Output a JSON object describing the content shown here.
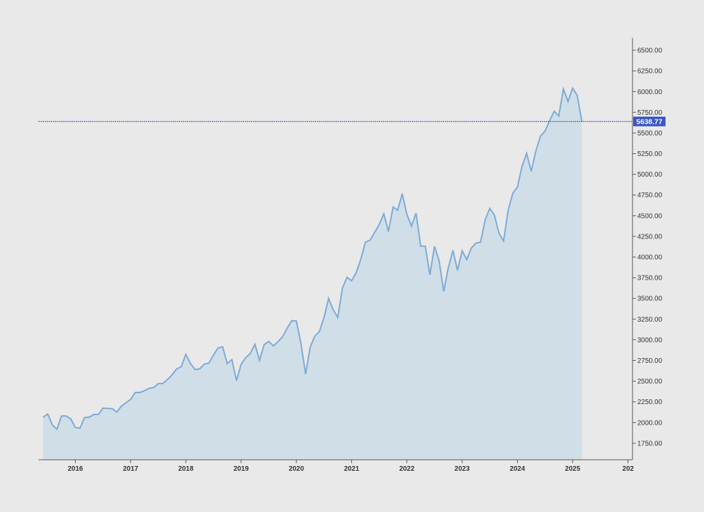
{
  "colors": {
    "background": "#e9e9e9",
    "line": "#7aaad8",
    "area_fill": "#d0dee7",
    "current_line": "#2b3fc9",
    "current_badge": "#3a56c8",
    "axis": "#555555"
  },
  "chart_data": {
    "type": "area",
    "title": "",
    "xlabel": "",
    "ylabel": "",
    "x_ticks": [
      "2016",
      "2017",
      "2018",
      "2019",
      "2020",
      "2021",
      "2022",
      "2023",
      "2024",
      "2025",
      "202"
    ],
    "y_ticks": [
      "1750.00",
      "2000.00",
      "2250.00",
      "2500.00",
      "2750.00",
      "3000.00",
      "3250.00",
      "3500.00",
      "3750.00",
      "4000.00",
      "4250.00",
      "4500.00",
      "4750.00",
      "5000.00",
      "5250.00",
      "5500.00",
      "5750.00",
      "6000.00",
      "6250.00",
      "6500.00"
    ],
    "ylim": [
      1550,
      6650
    ],
    "xlim": [
      "2015-05",
      "2026-02"
    ],
    "y_axis_position": "right",
    "grid": false,
    "current_value_label": "5638.77",
    "current_value": 5638.77,
    "series": [
      {
        "x": [
          "2015-06",
          "2015-07",
          "2015-08",
          "2015-09",
          "2015-10",
          "2015-11",
          "2015-12",
          "2016-01",
          "2016-02",
          "2016-03",
          "2016-04",
          "2016-05",
          "2016-06",
          "2016-07",
          "2016-08",
          "2016-09",
          "2016-10",
          "2016-11",
          "2016-12",
          "2017-01",
          "2017-02",
          "2017-03",
          "2017-04",
          "2017-05",
          "2017-06",
          "2017-07",
          "2017-08",
          "2017-09",
          "2017-10",
          "2017-11",
          "2017-12",
          "2018-01",
          "2018-02",
          "2018-03",
          "2018-04",
          "2018-05",
          "2018-06",
          "2018-07",
          "2018-08",
          "2018-09",
          "2018-10",
          "2018-11",
          "2018-12",
          "2019-01",
          "2019-02",
          "2019-03",
          "2019-04",
          "2019-05",
          "2019-06",
          "2019-07",
          "2019-08",
          "2019-09",
          "2019-10",
          "2019-11",
          "2019-12",
          "2020-01",
          "2020-02",
          "2020-03",
          "2020-04",
          "2020-05",
          "2020-06",
          "2020-07",
          "2020-08",
          "2020-09",
          "2020-10",
          "2020-11",
          "2020-12",
          "2021-01",
          "2021-02",
          "2021-03",
          "2021-04",
          "2021-05",
          "2021-06",
          "2021-07",
          "2021-08",
          "2021-09",
          "2021-10",
          "2021-11",
          "2021-12",
          "2022-01",
          "2022-02",
          "2022-03",
          "2022-04",
          "2022-05",
          "2022-06",
          "2022-07",
          "2022-08",
          "2022-09",
          "2022-10",
          "2022-11",
          "2022-12",
          "2023-01",
          "2023-02",
          "2023-03",
          "2023-04",
          "2023-05",
          "2023-06",
          "2023-07",
          "2023-08",
          "2023-09",
          "2023-10",
          "2023-11",
          "2023-12",
          "2024-01",
          "2024-02",
          "2024-03",
          "2024-04",
          "2024-05",
          "2024-06",
          "2024-07",
          "2024-08",
          "2024-09",
          "2024-10",
          "2024-11",
          "2024-12",
          "2025-01",
          "2025-02",
          "2025-03"
        ],
        "values": [
          2063,
          2104,
          1972,
          1920,
          2079,
          2080,
          2044,
          1940,
          1932,
          2060,
          2065,
          2097,
          2099,
          2174,
          2171,
          2168,
          2126,
          2199,
          2239,
          2279,
          2364,
          2363,
          2384,
          2412,
          2423,
          2470,
          2472,
          2519,
          2575,
          2648,
          2674,
          2824,
          2714,
          2641,
          2648,
          2705,
          2718,
          2816,
          2902,
          2914,
          2712,
          2760,
          2507,
          2704,
          2784,
          2834,
          2946,
          2752,
          2942,
          2980,
          2926,
          2977,
          3038,
          3141,
          3231,
          3226,
          2954,
          2585,
          2912,
          3044,
          3100,
          3271,
          3500,
          3363,
          3270,
          3622,
          3756,
          3714,
          3811,
          3973,
          4181,
          4204,
          4298,
          4395,
          4523,
          4308,
          4605,
          4567,
          4766,
          4516,
          4374,
          4530,
          4132,
          4132,
          3785,
          4130,
          3955,
          3586,
          3872,
          4080,
          3840,
          4077,
          3970,
          4109,
          4169,
          4180,
          4450,
          4589,
          4508,
          4288,
          4194,
          4568,
          4770,
          4846,
          5096,
          5254,
          5036,
          5278,
          5460,
          5522,
          5648,
          5762,
          5705,
          6032,
          5882,
          6041,
          5955,
          5639
        ]
      }
    ]
  }
}
